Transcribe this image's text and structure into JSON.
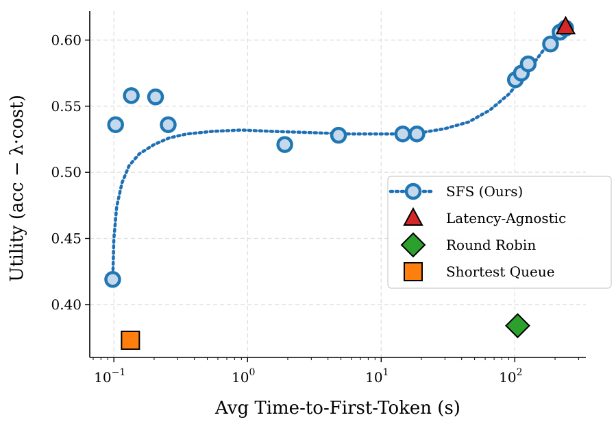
{
  "chart_data": {
    "type": "scatter",
    "xlabel": "Avg Time-to-First-Token (s)",
    "ylabel": "Utility (acc − λ·cost)",
    "x_scale": "log",
    "xlim": [
      0.066,
      340
    ],
    "ylim": [
      0.36,
      0.622
    ],
    "x_ticks": [
      {
        "value": 0.1,
        "base": "10",
        "exp": "−1"
      },
      {
        "value": 1,
        "base": "10",
        "exp": "0"
      },
      {
        "value": 10,
        "base": "10",
        "exp": "1"
      },
      {
        "value": 100,
        "base": "10",
        "exp": "2"
      }
    ],
    "y_ticks": [
      {
        "value": 0.4,
        "label": "0.40"
      },
      {
        "value": 0.45,
        "label": "0.45"
      },
      {
        "value": 0.5,
        "label": "0.50"
      },
      {
        "value": 0.55,
        "label": "0.55"
      },
      {
        "value": 0.6,
        "label": "0.60"
      }
    ],
    "grid": true,
    "legend_position": "center-right",
    "series": [
      {
        "name": "SFS (Ours)",
        "marker": "circle",
        "color": "#1f77b4",
        "fill": "#c6d9ec",
        "line_style": "dotted",
        "points": [
          {
            "x": 0.098,
            "y": 0.419
          },
          {
            "x": 0.103,
            "y": 0.536
          },
          {
            "x": 0.135,
            "y": 0.558
          },
          {
            "x": 0.205,
            "y": 0.557
          },
          {
            "x": 0.255,
            "y": 0.536
          },
          {
            "x": 1.9,
            "y": 0.521
          },
          {
            "x": 4.8,
            "y": 0.528
          },
          {
            "x": 14.5,
            "y": 0.529
          },
          {
            "x": 18.5,
            "y": 0.529
          },
          {
            "x": 101,
            "y": 0.57
          },
          {
            "x": 112,
            "y": 0.575
          },
          {
            "x": 126,
            "y": 0.582
          },
          {
            "x": 185,
            "y": 0.597
          },
          {
            "x": 218,
            "y": 0.606
          },
          {
            "x": 240,
            "y": 0.609
          }
        ],
        "curve": [
          {
            "x": 0.098,
            "y": 0.418
          },
          {
            "x": 0.1,
            "y": 0.45
          },
          {
            "x": 0.105,
            "y": 0.474
          },
          {
            "x": 0.115,
            "y": 0.492
          },
          {
            "x": 0.13,
            "y": 0.505
          },
          {
            "x": 0.155,
            "y": 0.514
          },
          {
            "x": 0.2,
            "y": 0.521
          },
          {
            "x": 0.26,
            "y": 0.526
          },
          {
            "x": 0.35,
            "y": 0.529
          },
          {
            "x": 0.55,
            "y": 0.531
          },
          {
            "x": 0.9,
            "y": 0.532
          },
          {
            "x": 1.5,
            "y": 0.531
          },
          {
            "x": 3.0,
            "y": 0.53
          },
          {
            "x": 6.0,
            "y": 0.529
          },
          {
            "x": 12,
            "y": 0.529
          },
          {
            "x": 20,
            "y": 0.53
          },
          {
            "x": 30,
            "y": 0.533
          },
          {
            "x": 45,
            "y": 0.538
          },
          {
            "x": 65,
            "y": 0.547
          },
          {
            "x": 90,
            "y": 0.559
          },
          {
            "x": 120,
            "y": 0.574
          },
          {
            "x": 160,
            "y": 0.591
          },
          {
            "x": 200,
            "y": 0.603
          },
          {
            "x": 235,
            "y": 0.61
          }
        ]
      },
      {
        "name": "Latency-Agnostic",
        "marker": "triangle",
        "color": "#d62728",
        "points": [
          {
            "x": 240,
            "y": 0.61
          }
        ]
      },
      {
        "name": "Round Robin",
        "marker": "diamond",
        "color": "#2ca02c",
        "points": [
          {
            "x": 105,
            "y": 0.384
          }
        ]
      },
      {
        "name": "Shortest Queue",
        "marker": "square",
        "color": "#ff7f0e",
        "points": [
          {
            "x": 0.133,
            "y": 0.373
          }
        ]
      }
    ]
  }
}
